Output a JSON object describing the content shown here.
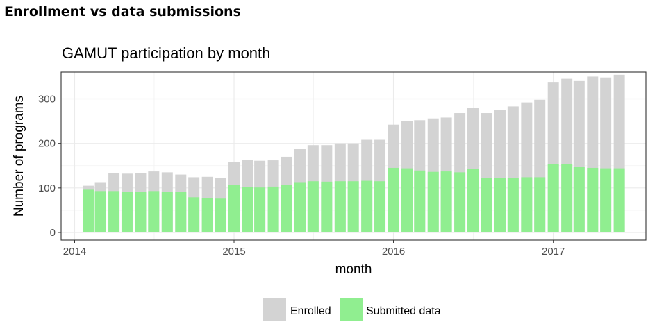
{
  "page": {
    "heading": "Enrollment vs data submissions"
  },
  "colors": {
    "enrolled": "#d3d3d3",
    "submitted": "#90ee90",
    "panel_border": "#333333",
    "grid": "#ebebeb"
  },
  "chart_data": {
    "type": "bar",
    "title": "GAMUT participation by month",
    "xlabel": "month",
    "ylabel": "Number of programs",
    "x_axis": "date",
    "xlim": [
      "2013-12-01",
      "2017-08-01"
    ],
    "ylim": [
      0,
      360
    ],
    "xticks": [
      "2014",
      "2015",
      "2016",
      "2017"
    ],
    "yticks": [
      "0",
      "100",
      "200",
      "300"
    ],
    "grid": true,
    "legend_position": "bottom",
    "categories": [
      "2014-02",
      "2014-03",
      "2014-04",
      "2014-05",
      "2014-06",
      "2014-07",
      "2014-08",
      "2014-09",
      "2014-10",
      "2014-11",
      "2014-12",
      "2015-01",
      "2015-02",
      "2015-03",
      "2015-04",
      "2015-05",
      "2015-06",
      "2015-07",
      "2015-08",
      "2015-09",
      "2015-10",
      "2015-11",
      "2015-12",
      "2016-01",
      "2016-02",
      "2016-03",
      "2016-04",
      "2016-05",
      "2016-06",
      "2016-07",
      "2016-08",
      "2016-09",
      "2016-10",
      "2016-11",
      "2016-12",
      "2017-01",
      "2017-02",
      "2017-03",
      "2017-04",
      "2017-05",
      "2017-06"
    ],
    "series": [
      {
        "name": "Enrolled",
        "values": [
          105,
          113,
          133,
          132,
          134,
          137,
          135,
          130,
          124,
          125,
          123,
          158,
          163,
          161,
          162,
          170,
          187,
          196,
          196,
          200,
          200,
          208,
          208,
          242,
          250,
          252,
          256,
          258,
          268,
          280,
          268,
          275,
          283,
          292,
          298,
          338,
          345,
          340,
          350,
          348,
          354
        ]
      },
      {
        "name": "Submitted data",
        "values": [
          96,
          93,
          93,
          91,
          91,
          93,
          91,
          91,
          79,
          77,
          76,
          106,
          102,
          101,
          103,
          106,
          113,
          115,
          114,
          115,
          115,
          116,
          115,
          145,
          144,
          139,
          136,
          137,
          135,
          142,
          123,
          123,
          123,
          124,
          124,
          153,
          154,
          148,
          145,
          144,
          144
        ]
      }
    ]
  }
}
